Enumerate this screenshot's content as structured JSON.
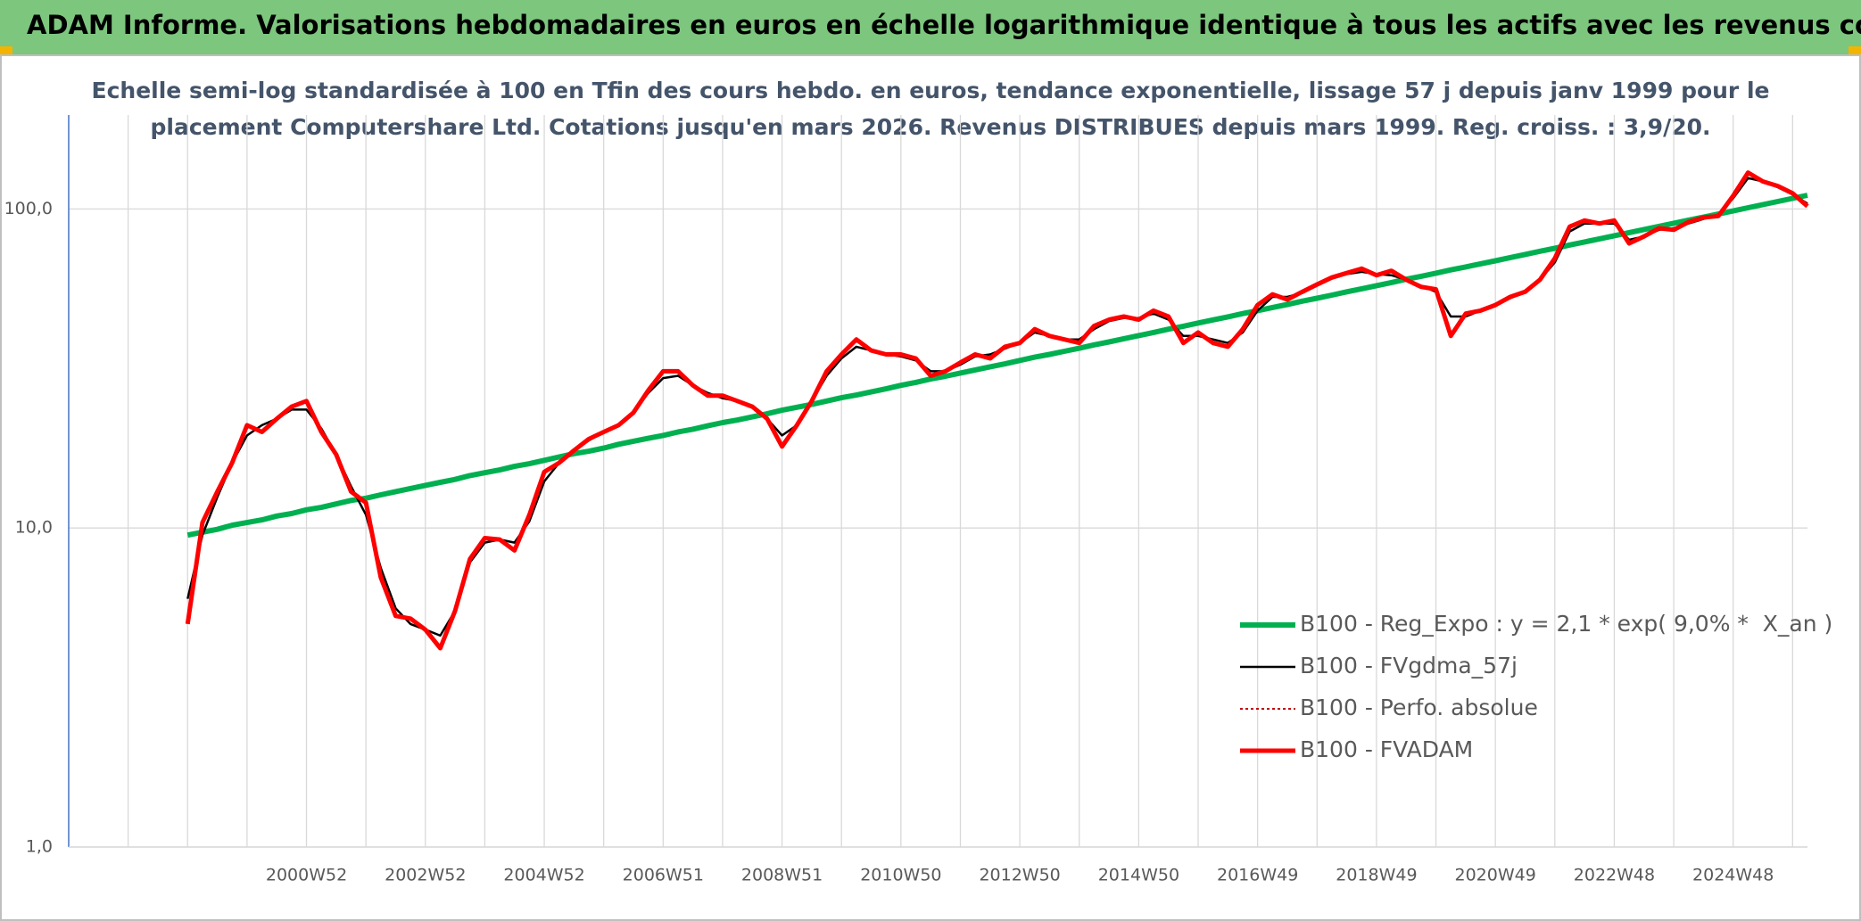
{
  "chart_data": {
    "type": "line",
    "title": "ADAM Informe. Valorisations hebdomadaires en euros en échelle logarithmique identique à tous les actifs avec les revenus connus distribués",
    "subtitle": [
      "Echelle semi-log standardisée à 100 en Tfin des cours hebdo. en euros, tendance exponentielle, lissage 57 j depuis janv 1999 pour le",
      "placement Computershare Ltd. Cotations jusqu'en mars 2026. Revenus DISTRIBUES depuis mars 1999. Reg. croiss. : 3,9/20."
    ],
    "log_scale": true,
    "grid": true,
    "ylim": [
      1,
      197
    ],
    "yticks": [
      {
        "value": 1,
        "label": "1,0"
      },
      {
        "value": 10,
        "label": "10,0"
      },
      {
        "value": 100,
        "label": "100,0"
      }
    ],
    "categories": [
      null,
      null,
      null,
      null,
      null,
      null,
      null,
      null,
      null,
      null,
      null,
      null,
      null,
      null,
      null,
      null,
      "2000W52",
      null,
      null,
      null,
      null,
      null,
      null,
      null,
      "2002W52",
      null,
      null,
      null,
      null,
      null,
      null,
      null,
      "2004W52",
      null,
      null,
      null,
      null,
      null,
      null,
      null,
      "2006W51",
      null,
      null,
      null,
      null,
      null,
      null,
      null,
      "2008W51",
      null,
      null,
      null,
      null,
      null,
      null,
      null,
      "2010W50",
      null,
      null,
      null,
      null,
      null,
      null,
      null,
      "2012W50",
      null,
      null,
      null,
      null,
      null,
      null,
      null,
      "2014W50",
      null,
      null,
      null,
      null,
      null,
      null,
      null,
      "2016W49",
      null,
      null,
      null,
      null,
      null,
      null,
      null,
      "2018W49",
      null,
      null,
      null,
      null,
      null,
      null,
      null,
      "2020W49",
      null,
      null,
      null,
      null,
      null,
      null,
      null,
      "2022W48",
      null,
      null,
      null,
      null,
      null,
      null,
      null,
      "2024W48",
      null,
      null,
      null,
      null,
      null
    ],
    "legend_position": "lower right",
    "series": [
      {
        "name": "B100 - Reg_Expo : y = 2,1 * exp( 9,0% *  X_an )",
        "color": "#00B050",
        "width": 6,
        "values": [
          null,
          null,
          null,
          null,
          null,
          null,
          null,
          null,
          9.5,
          9.7,
          9.9,
          10.2,
          10.4,
          10.6,
          10.9,
          11.1,
          11.4,
          11.6,
          11.9,
          12.2,
          12.4,
          12.7,
          13.0,
          13.3,
          13.6,
          13.9,
          14.2,
          14.6,
          14.9,
          15.2,
          15.6,
          15.9,
          16.3,
          16.7,
          17.1,
          17.4,
          17.8,
          18.3,
          18.7,
          19.1,
          19.5,
          20.0,
          20.4,
          20.9,
          21.4,
          21.8,
          22.3,
          22.8,
          23.4,
          23.9,
          24.4,
          25.0,
          25.6,
          26.1,
          26.7,
          27.3,
          28.0,
          28.6,
          29.3,
          29.9,
          30.6,
          31.3,
          32.0,
          32.7,
          33.5,
          34.3,
          35.0,
          35.8,
          36.6,
          37.5,
          38.3,
          39.2,
          40.1,
          41.0,
          42.0,
          42.9,
          43.9,
          44.9,
          45.9,
          47.0,
          48.0,
          49.1,
          50.2,
          51.4,
          52.5,
          53.7,
          55.0,
          56.2,
          57.5,
          58.8,
          60.2,
          61.5,
          62.9,
          64.4,
          65.8,
          67.3,
          68.8,
          70.4,
          72.0,
          73.7,
          75.3,
          77.1,
          78.8,
          80.6,
          82.4,
          84.3,
          86.2,
          88.2,
          90.2,
          92.2,
          94.3,
          96.4,
          98.6,
          100.9,
          103.2,
          105.5,
          107.9,
          110.4
        ]
      },
      {
        "name": "B100 - FVgdma_57j",
        "color": "#000000",
        "width": 2.5,
        "values": [
          null,
          null,
          null,
          null,
          null,
          null,
          null,
          null,
          6,
          9.5,
          12.5,
          16,
          19.5,
          21,
          22,
          23.5,
          23.5,
          20.5,
          17,
          13.5,
          11,
          7.5,
          5.6,
          5,
          4.8,
          4.6,
          5.5,
          7.8,
          9,
          9.2,
          9,
          10.5,
          14,
          16,
          17.5,
          18.8,
          20,
          21,
          23,
          26.5,
          29.5,
          30,
          28,
          26.5,
          25.5,
          25,
          24,
          22,
          19.5,
          21,
          25,
          30,
          34,
          37,
          36,
          35,
          34.5,
          33.5,
          31,
          31,
          32.5,
          34.5,
          35,
          36.5,
          38,
          41,
          40,
          39,
          39,
          42,
          44.5,
          45.5,
          45.5,
          47,
          45,
          40,
          40,
          39,
          38,
          41,
          48,
          53,
          53,
          54.5,
          57.5,
          60.5,
          62.5,
          63.5,
          62.5,
          62,
          60,
          57.5,
          55,
          46,
          46,
          48,
          50,
          52.5,
          55,
          60,
          68,
          85,
          90,
          90,
          90,
          80,
          82,
          86,
          87,
          90,
          93,
          96,
          108,
          125,
          122,
          117,
          111,
          104
        ]
      },
      {
        "name": "B100 - Perfo. absolue",
        "color": "#C00000",
        "width": 2,
        "dash": "3 3"
      },
      {
        "name": "B100 - FVADAM",
        "color": "#FF0000",
        "width": 5,
        "values": [
          null,
          null,
          null,
          null,
          null,
          null,
          null,
          null,
          5,
          10.4,
          13,
          16,
          21,
          20,
          22,
          24,
          25,
          20,
          17,
          13,
          12,
          7,
          5.3,
          5.2,
          4.8,
          4.2,
          5.5,
          8,
          9.3,
          9.2,
          8.5,
          11,
          15,
          16,
          17.5,
          19,
          20,
          21,
          23,
          27,
          31,
          31,
          28,
          26,
          26,
          25,
          24,
          22,
          18,
          21,
          25,
          31,
          35,
          39,
          36,
          35,
          35,
          34,
          30,
          31,
          33,
          35,
          34,
          37,
          38,
          42,
          40,
          39,
          38,
          43,
          45,
          46,
          45,
          48,
          46,
          38,
          41,
          38,
          37,
          42,
          50,
          54,
          52,
          55,
          58,
          61,
          63,
          65,
          62,
          64,
          60,
          57,
          56,
          40,
          47,
          48,
          50,
          53,
          55,
          60,
          70,
          88,
          92,
          90,
          92,
          78,
          82,
          87,
          86,
          91,
          94,
          95,
          110,
          130,
          122,
          118,
          112,
          102
        ]
      }
    ]
  }
}
